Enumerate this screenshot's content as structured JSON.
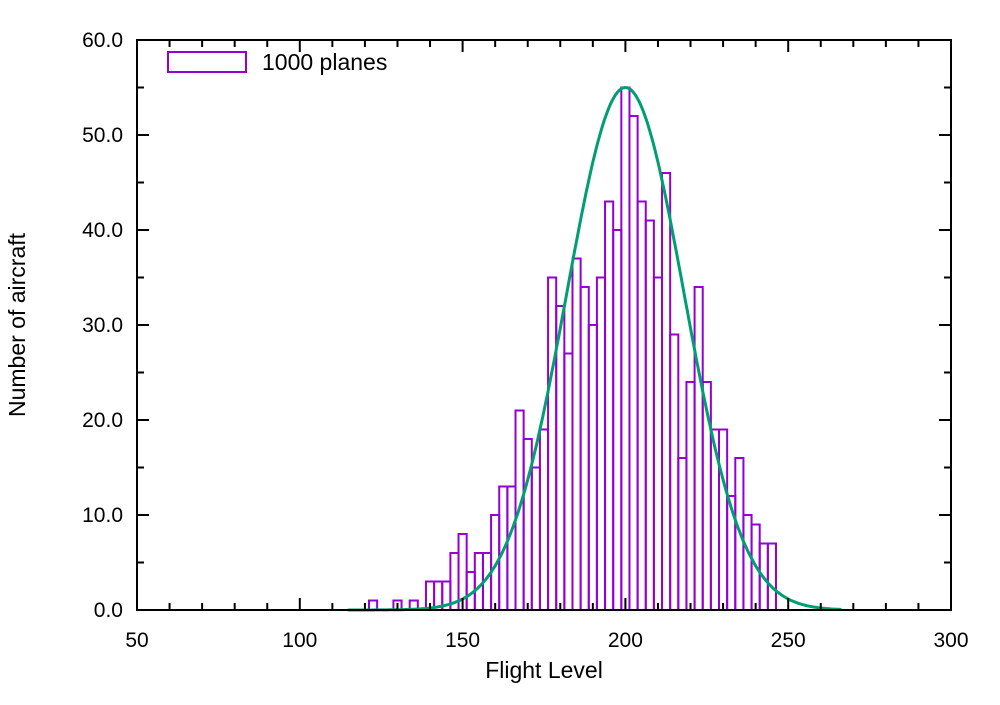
{
  "chart_data": {
    "type": "histogram+line",
    "title": "",
    "xlabel": "Flight Level",
    "ylabel": "Number of aircraft",
    "xlim": [
      50,
      300
    ],
    "ylim": [
      0,
      60
    ],
    "x_tick_labels": [
      "50",
      "100",
      "150",
      "200",
      "250",
      "300"
    ],
    "x_major_ticks": [
      50,
      100,
      150,
      200,
      250,
      300
    ],
    "x_minor_step": 10,
    "y_tick_labels": [
      "0.0",
      "10.0",
      "20.0",
      "30.0",
      "40.0",
      "50.0",
      "60.0"
    ],
    "y_major_ticks": [
      0,
      10,
      20,
      30,
      40,
      50,
      60
    ],
    "y_minor_step": 5,
    "grid": false,
    "legend": {
      "label": "1000 planes",
      "position": "top-left"
    },
    "bin_width": 2.5,
    "bins": [
      122.5,
      125,
      127.5,
      130,
      132.5,
      135,
      137.5,
      140,
      142.5,
      145,
      147.5,
      150,
      152.5,
      155,
      157.5,
      160,
      162.5,
      165,
      167.5,
      170,
      172.5,
      175,
      177.5,
      180,
      182.5,
      185,
      187.5,
      190,
      192.5,
      195,
      197.5,
      200,
      202.5,
      205,
      207.5,
      210,
      212.5,
      215,
      217.5,
      220,
      222.5,
      225,
      227.5,
      230,
      232.5,
      235,
      237.5,
      240,
      242.5,
      245
    ],
    "counts": [
      1,
      0,
      0,
      1,
      0,
      1,
      0,
      3,
      3,
      3,
      6,
      8,
      4,
      6,
      6,
      10,
      13,
      13,
      21,
      18,
      15,
      19,
      35,
      32,
      27,
      37,
      34,
      30,
      35,
      43,
      40,
      55,
      52,
      43,
      41,
      35,
      46,
      29,
      16,
      24,
      34,
      24,
      19,
      19,
      12,
      16,
      10,
      9,
      7,
      7
    ],
    "fit_curve": {
      "type": "gaussian",
      "amplitude": 55,
      "mean": 200,
      "sigma": 18,
      "x_start": 115,
      "x_end": 266
    },
    "colors": {
      "bars": "#9400d3",
      "curve": "#009e73",
      "axes": "#000000",
      "background": "#ffffff"
    }
  }
}
